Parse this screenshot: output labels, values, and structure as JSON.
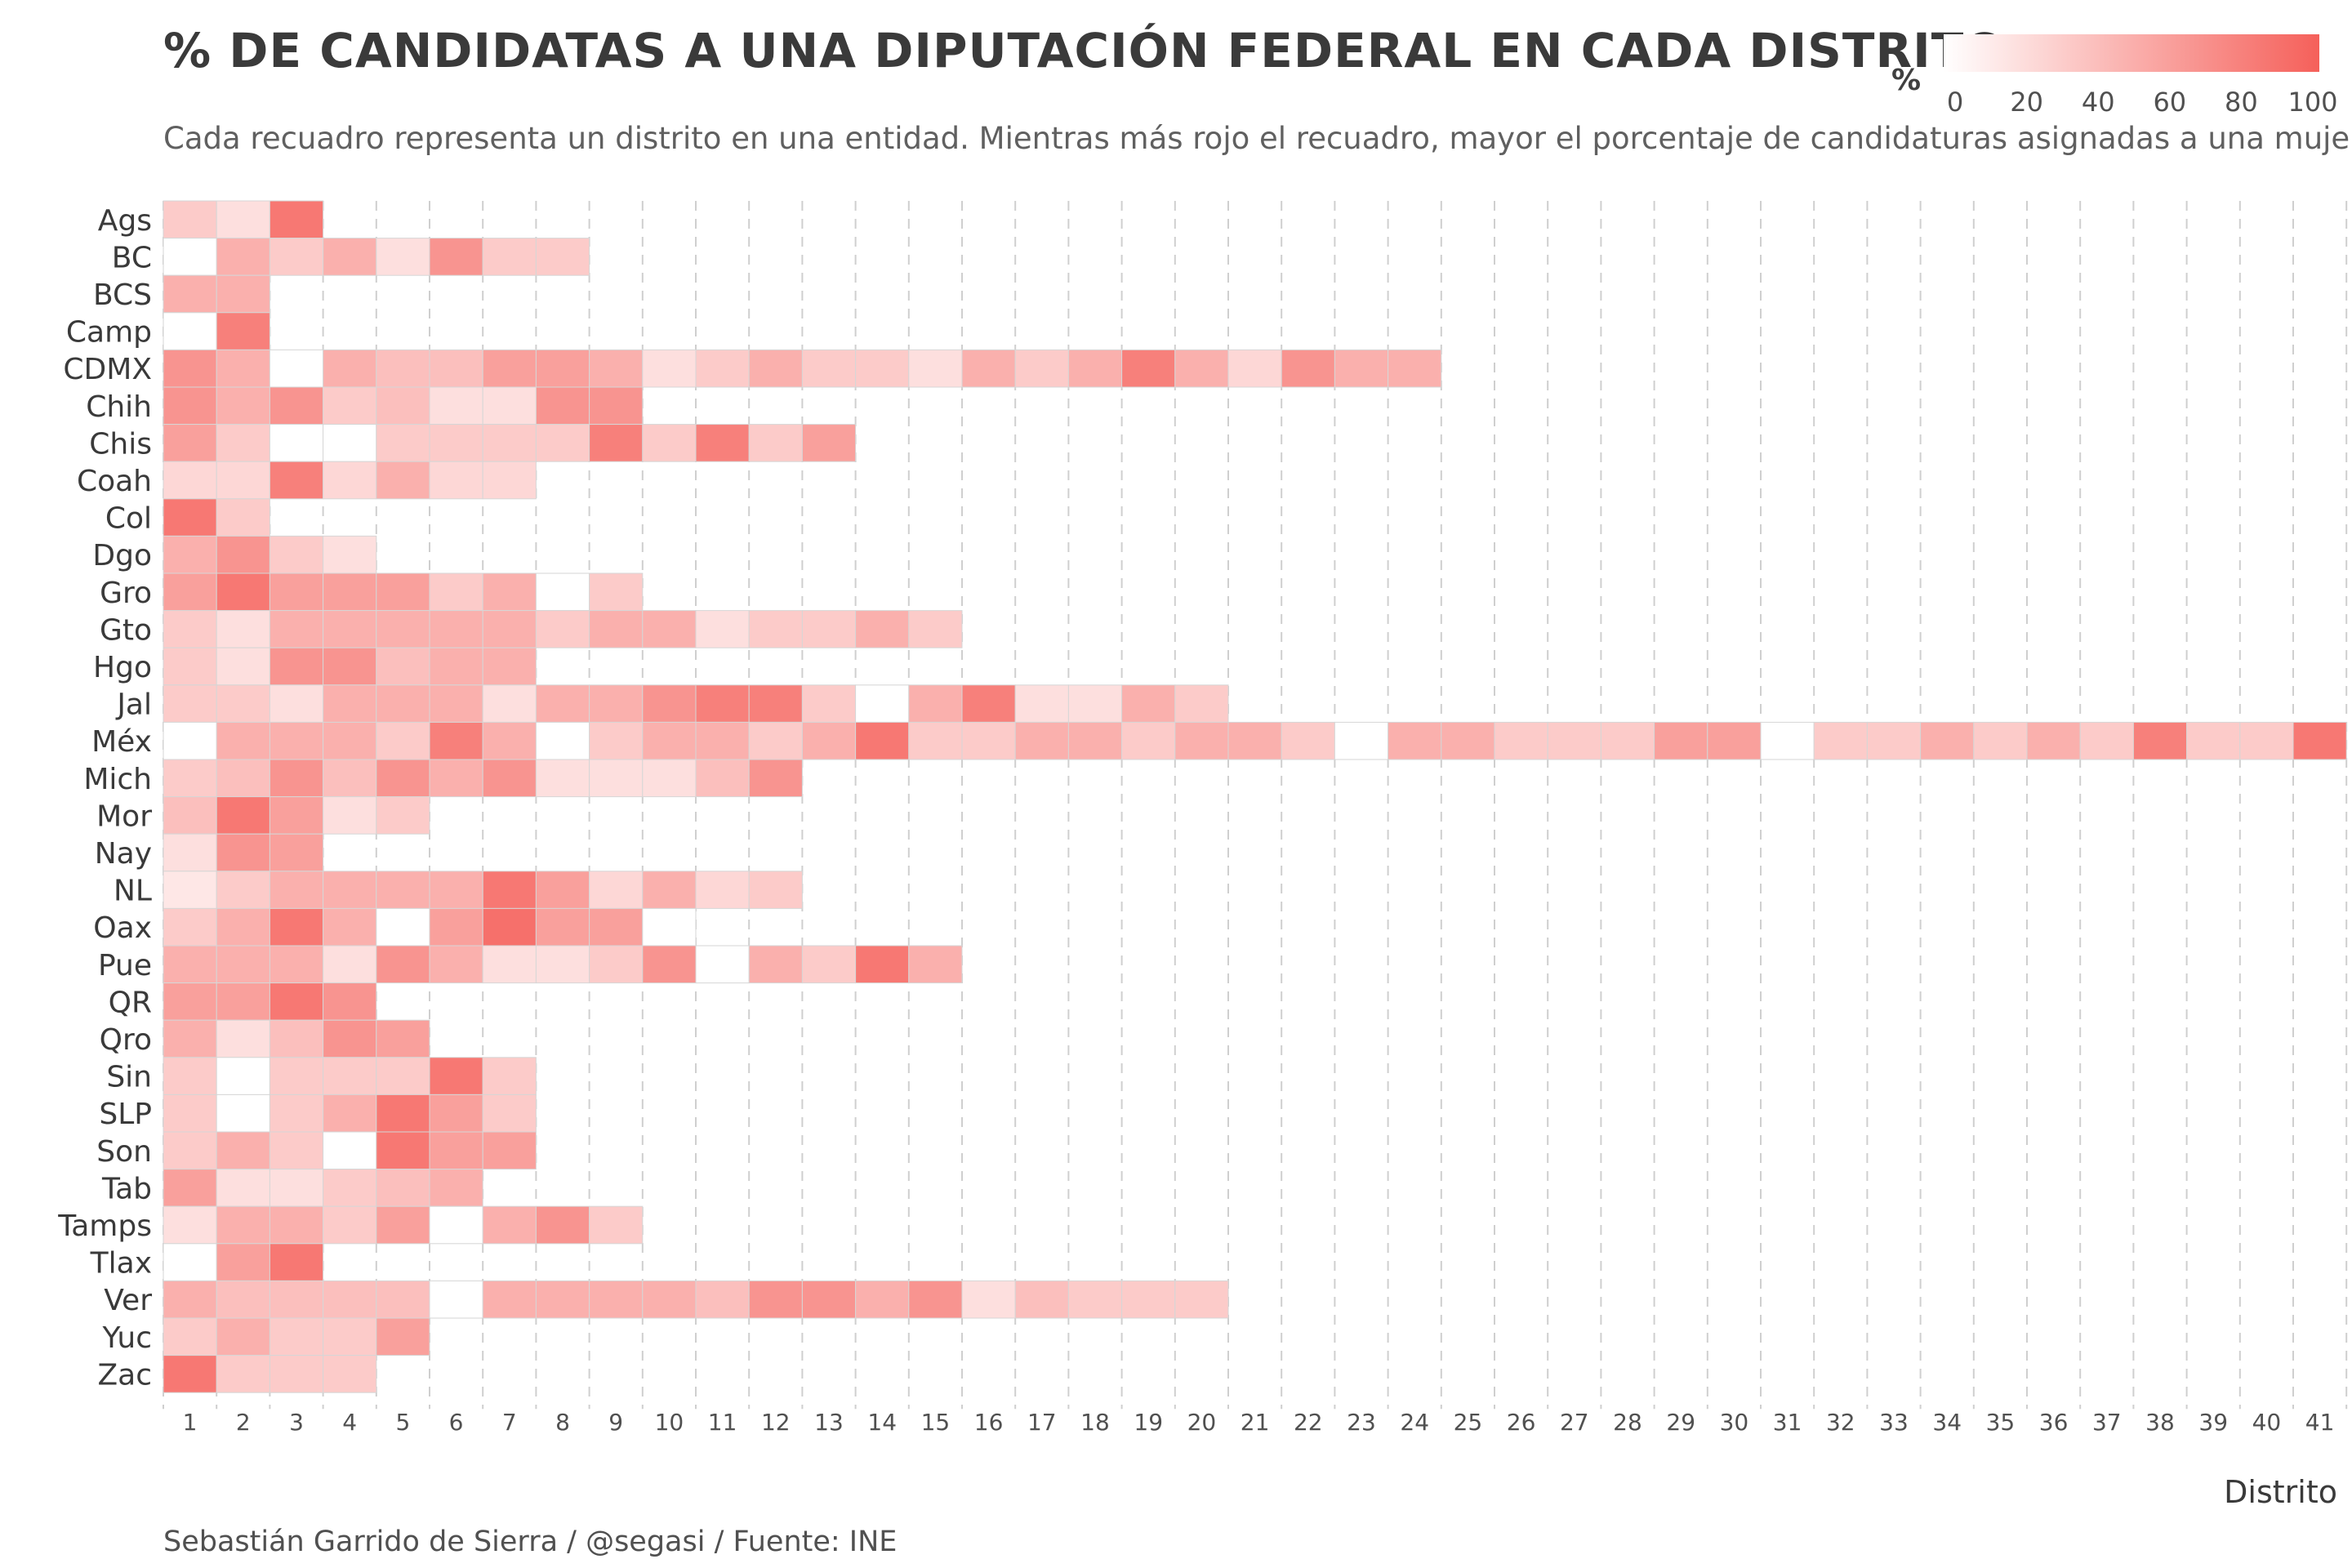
{
  "title": "% DE CANDIDATAS A UNA DIPUTACIÓN FEDERAL EN CADA DISTRITO",
  "subtitle": "Cada recuadro representa un distrito en una entidad. Mientras más rojo el recuadro, mayor el porcentaje de candidaturas asignadas a una mujer.",
  "caption": "Sebastián Garrido de Sierra / @segasi / Fuente: INE",
  "legend": {
    "title": "%",
    "ticks": [
      "0",
      "20",
      "40",
      "60",
      "80",
      "100"
    ],
    "color_low": "#ffffff",
    "color_high": "#f5605a"
  },
  "chart_data": {
    "type": "heatmap",
    "xlabel": "Distrito",
    "ylabel": "",
    "x_categories": [
      "1",
      "2",
      "3",
      "4",
      "5",
      "6",
      "7",
      "8",
      "9",
      "10",
      "11",
      "12",
      "13",
      "14",
      "15",
      "16",
      "17",
      "18",
      "19",
      "20",
      "21",
      "22",
      "23",
      "24",
      "25",
      "26",
      "27",
      "28",
      "29",
      "30",
      "31",
      "32",
      "33",
      "34",
      "35",
      "36",
      "37",
      "38",
      "39",
      "40",
      "41"
    ],
    "grid": "vertical dashed",
    "value_range": [
      0,
      100
    ],
    "rows": [
      {
        "entity": "Ags",
        "values": [
          33,
          20,
          85
        ]
      },
      {
        "entity": "BC",
        "values": [
          0,
          50,
          33,
          50,
          20,
          67,
          33,
          33
        ]
      },
      {
        "entity": "BCS",
        "values": [
          50,
          50
        ]
      },
      {
        "entity": "Camp",
        "values": [
          0,
          80
        ]
      },
      {
        "entity": "CDMX",
        "values": [
          67,
          50,
          0,
          50,
          40,
          40,
          60,
          60,
          50,
          20,
          33,
          50,
          33,
          33,
          20,
          50,
          33,
          50,
          80,
          50,
          25,
          67,
          50,
          50
        ]
      },
      {
        "entity": "Chih",
        "values": [
          67,
          50,
          67,
          33,
          40,
          20,
          20,
          67,
          67
        ]
      },
      {
        "entity": "Chis",
        "values": [
          60,
          33,
          0,
          0,
          33,
          33,
          33,
          33,
          80,
          33,
          80,
          33,
          60
        ]
      },
      {
        "entity": "Coah",
        "values": [
          25,
          25,
          80,
          25,
          50,
          25,
          25
        ]
      },
      {
        "entity": "Col",
        "values": [
          85,
          33
        ]
      },
      {
        "entity": "Dgo",
        "values": [
          50,
          67,
          33,
          20
        ]
      },
      {
        "entity": "Gro",
        "values": [
          60,
          85,
          60,
          60,
          60,
          33,
          50,
          0,
          33
        ]
      },
      {
        "entity": "Gto",
        "values": [
          33,
          20,
          50,
          50,
          50,
          50,
          50,
          33,
          50,
          50,
          20,
          33,
          33,
          50,
          33
        ]
      },
      {
        "entity": "Hgo",
        "values": [
          33,
          20,
          67,
          67,
          40,
          50,
          50
        ]
      },
      {
        "entity": "Jal",
        "values": [
          33,
          33,
          20,
          50,
          50,
          50,
          20,
          50,
          50,
          67,
          80,
          80,
          33,
          0,
          50,
          80,
          20,
          20,
          50,
          33
        ]
      },
      {
        "entity": "Méx",
        "values": [
          0,
          50,
          50,
          50,
          33,
          80,
          50,
          0,
          33,
          50,
          50,
          33,
          50,
          85,
          33,
          33,
          50,
          50,
          33,
          50,
          50,
          33,
          0,
          50,
          50,
          33,
          33,
          33,
          60,
          60,
          0,
          33,
          33,
          50,
          33,
          50,
          33,
          80,
          33,
          33,
          85
        ]
      },
      {
        "entity": "Mich",
        "values": [
          33,
          40,
          67,
          40,
          67,
          50,
          67,
          20,
          20,
          20,
          40,
          67
        ]
      },
      {
        "entity": "Mor",
        "values": [
          40,
          85,
          60,
          20,
          33
        ]
      },
      {
        "entity": "Nay",
        "values": [
          20,
          67,
          60
        ]
      },
      {
        "entity": "NL",
        "values": [
          15,
          33,
          50,
          50,
          50,
          50,
          85,
          60,
          25,
          50,
          25,
          33
        ]
      },
      {
        "entity": "Oax",
        "values": [
          33,
          50,
          85,
          50,
          0,
          60,
          90,
          60,
          60,
          0
        ]
      },
      {
        "entity": "Pue",
        "values": [
          50,
          50,
          50,
          20,
          67,
          50,
          20,
          20,
          33,
          67,
          0,
          50,
          33,
          85,
          50
        ]
      },
      {
        "entity": "QR",
        "values": [
          60,
          60,
          85,
          67
        ]
      },
      {
        "entity": "Qro",
        "values": [
          50,
          20,
          40,
          67,
          60
        ]
      },
      {
        "entity": "Sin",
        "values": [
          33,
          0,
          33,
          33,
          33,
          85,
          33
        ]
      },
      {
        "entity": "SLP",
        "values": [
          33,
          0,
          33,
          50,
          85,
          60,
          33
        ]
      },
      {
        "entity": "Son",
        "values": [
          33,
          50,
          33,
          0,
          85,
          60,
          60
        ]
      },
      {
        "entity": "Tab",
        "values": [
          60,
          20,
          20,
          33,
          40,
          50
        ]
      },
      {
        "entity": "Tamps",
        "values": [
          20,
          50,
          50,
          33,
          60,
          0,
          50,
          67,
          33
        ]
      },
      {
        "entity": "Tlax",
        "values": [
          0,
          60,
          85
        ]
      },
      {
        "entity": "Ver",
        "values": [
          50,
          40,
          40,
          40,
          40,
          0,
          50,
          50,
          50,
          50,
          40,
          67,
          67,
          50,
          67,
          20,
          40,
          33,
          33,
          33
        ]
      },
      {
        "entity": "Yuc",
        "values": [
          33,
          50,
          33,
          33,
          60
        ]
      },
      {
        "entity": "Zac",
        "values": [
          85,
          33,
          33,
          33
        ]
      }
    ]
  }
}
